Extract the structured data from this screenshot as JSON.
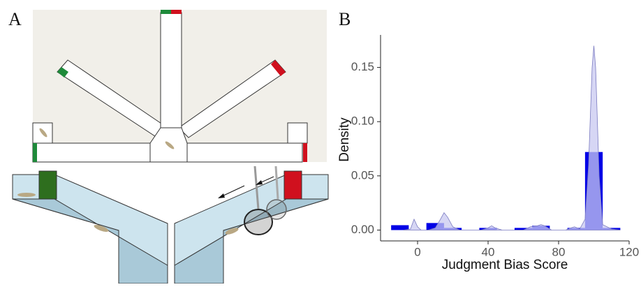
{
  "panel_labels": [
    "A",
    "B"
  ],
  "chart_data": {
    "type": "histogram",
    "x_label": "Judgment Bias Score",
    "y_label": "Density",
    "bins": [
      -15,
      -5,
      5,
      15,
      25,
      35,
      45,
      55,
      65,
      75,
      85,
      95,
      105,
      115
    ],
    "values": [
      0.0045,
      0,
      0.0065,
      0.002,
      0,
      0.002,
      0,
      0.002,
      0.004,
      0,
      0.002,
      0.072,
      0.002
    ],
    "color": "#0000e6",
    "density": {
      "color": "#c8c8f0",
      "line_color": "#7a7ac0",
      "x": [
        -8,
        -4,
        -2,
        0,
        2,
        6,
        10,
        13,
        15,
        17,
        20,
        24,
        36,
        40,
        42,
        44,
        48,
        60,
        64,
        68,
        70,
        72,
        76,
        84,
        87,
        89,
        92,
        95,
        97,
        99,
        100,
        101,
        103,
        105,
        110,
        115
      ],
      "y": [
        0,
        0.001,
        0.01,
        0.003,
        0,
        0,
        0.002,
        0.01,
        0.016,
        0.012,
        0.003,
        0,
        0,
        0.002,
        0.004,
        0.002,
        0,
        0,
        0.003,
        0.004,
        0.005,
        0.004,
        0,
        0,
        0.002,
        0.003,
        0.001,
        0.01,
        0.06,
        0.15,
        0.17,
        0.15,
        0.05,
        0.005,
        0.001,
        0
      ]
    },
    "xlim": [
      -21,
      120
    ],
    "ylim": [
      -0.01,
      0.18
    ],
    "xticks": [
      0,
      40,
      80,
      120
    ],
    "yticks": [
      {
        "value": 0,
        "label": "0.00"
      },
      0.05,
      {
        "value": 0.1,
        "label": "0.10"
      },
      0.15
    ]
  }
}
